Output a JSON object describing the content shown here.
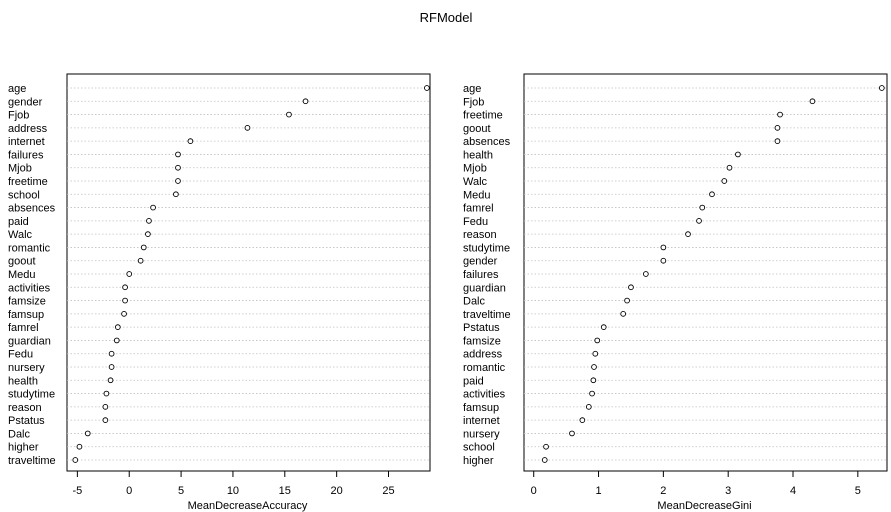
{
  "title": "RFModel",
  "chart_data": [
    {
      "type": "scatter",
      "xlabel": "MeanDecreaseAccuracy",
      "xlim": [
        -6,
        29
      ],
      "xticks": [
        -5,
        0,
        5,
        10,
        15,
        20,
        25
      ],
      "grid": "dotted horizontal",
      "categories": [
        "age",
        "gender",
        "Fjob",
        "address",
        "internet",
        "failures",
        "Mjob",
        "freetime",
        "school",
        "absences",
        "paid",
        "Walc",
        "romantic",
        "goout",
        "Medu",
        "activities",
        "famsize",
        "famsup",
        "famrel",
        "guardian",
        "Fedu",
        "nursery",
        "health",
        "studytime",
        "reason",
        "Pstatus",
        "Dalc",
        "higher",
        "traveltime"
      ],
      "values": [
        28.7,
        17.0,
        15.4,
        11.4,
        5.9,
        4.7,
        4.7,
        4.7,
        4.5,
        2.3,
        1.9,
        1.8,
        1.4,
        1.1,
        0.0,
        -0.4,
        -0.4,
        -0.5,
        -1.1,
        -1.2,
        -1.7,
        -1.7,
        -1.8,
        -2.2,
        -2.3,
        -2.3,
        -4.0,
        -4.8,
        -5.2
      ]
    },
    {
      "type": "scatter",
      "xlabel": "MeanDecreaseGini",
      "xlim": [
        -0.15,
        5.45
      ],
      "xticks": [
        0,
        1,
        2,
        3,
        4,
        5
      ],
      "grid": "dotted horizontal",
      "categories": [
        "age",
        "Fjob",
        "freetime",
        "goout",
        "absences",
        "health",
        "Mjob",
        "Walc",
        "Medu",
        "famrel",
        "Fedu",
        "reason",
        "studytime",
        "gender",
        "failures",
        "guardian",
        "Dalc",
        "traveltime",
        "Pstatus",
        "famsize",
        "address",
        "romantic",
        "paid",
        "activities",
        "famsup",
        "internet",
        "nursery",
        "school",
        "higher"
      ],
      "values": [
        5.37,
        4.3,
        3.8,
        3.76,
        3.76,
        3.15,
        3.02,
        2.94,
        2.75,
        2.6,
        2.55,
        2.38,
        2.0,
        2.0,
        1.73,
        1.5,
        1.44,
        1.38,
        1.08,
        0.98,
        0.95,
        0.93,
        0.92,
        0.9,
        0.85,
        0.75,
        0.59,
        0.19,
        0.17
      ]
    }
  ]
}
